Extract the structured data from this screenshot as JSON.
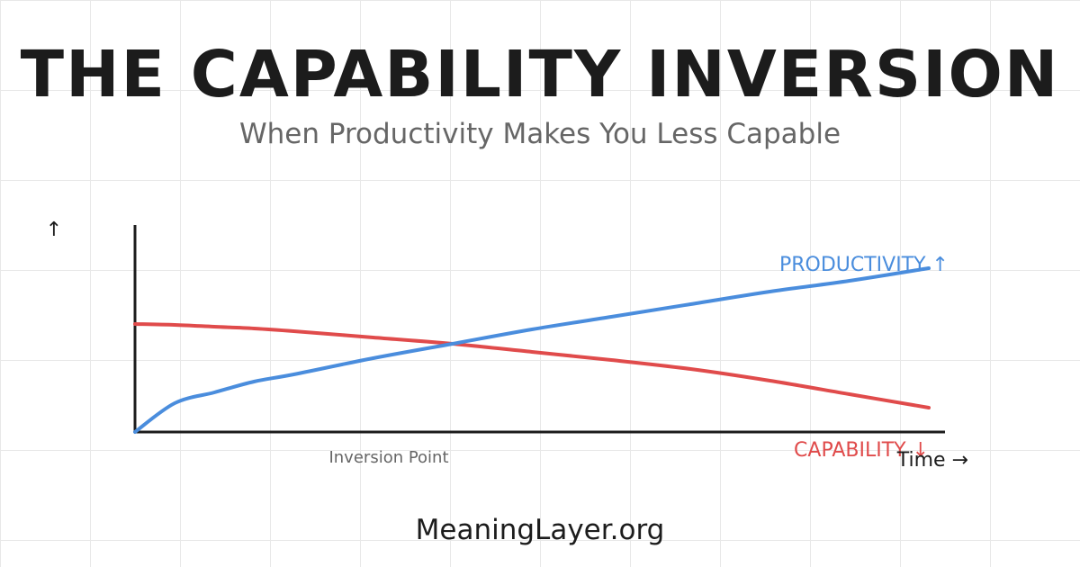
{
  "header": {
    "title": "THE CAPABILITY INVERSION",
    "subtitle": "When Productivity Makes You Less Capable"
  },
  "footer": {
    "site": "MeaningLayer.org"
  },
  "colors": {
    "productivity": "#4a8ddd",
    "capability": "#e04b4b",
    "axis": "#1c1c1c",
    "grid": "#e8e8e8",
    "annotation": "#666666"
  },
  "chart_data": {
    "type": "line",
    "title": "THE CAPABILITY INVERSION",
    "subtitle": "When Productivity Makes You Less Capable",
    "xlabel": "Time →",
    "ylabel": "↑",
    "x": [
      0,
      5,
      10,
      15,
      20,
      30,
      40,
      50,
      60,
      70,
      80,
      90,
      100
    ],
    "series": [
      {
        "name": "PRODUCTIVITY ↑",
        "color": "#4a8ddd",
        "values": [
          0,
          16,
          22,
          28,
          32,
          41,
          49,
          57,
          64,
          71,
          78,
          84,
          91
        ]
      },
      {
        "name": "CAPABILITY ↓",
        "color": "#e04b4b",
        "values": [
          60,
          59.5,
          58.5,
          57.5,
          56,
          52.5,
          49,
          44.5,
          40,
          35,
          28.5,
          21,
          13.5
        ]
      }
    ],
    "annotations": [
      {
        "text": "Inversion Point",
        "x": 42
      }
    ],
    "legend_position": "inline-end-of-line",
    "grid": true,
    "ylim": [
      0,
      100
    ],
    "xlim": [
      0,
      100
    ]
  },
  "labels": {
    "y_axis": "↑",
    "x_axis": "Time →",
    "inversion": "Inversion Point",
    "productivity": "PRODUCTIVITY ↑",
    "capability": "CAPABILITY ↓"
  }
}
